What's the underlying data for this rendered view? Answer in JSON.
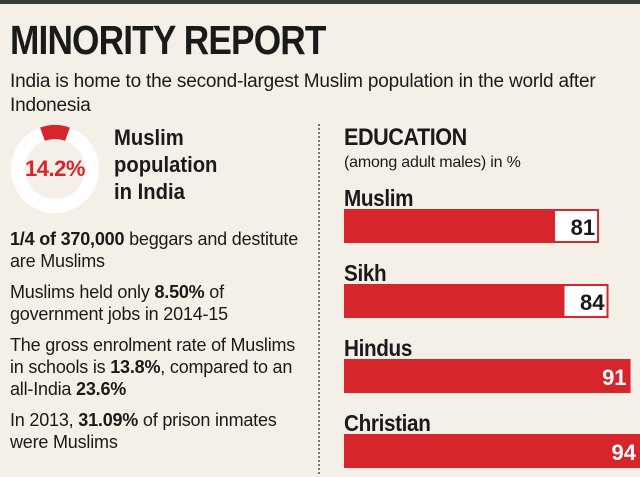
{
  "header": {
    "title": "MINORITY REPORT",
    "subtitle": "India is home to the second-largest Muslim population in the world after Indonesia"
  },
  "population": {
    "value_text": "14.2%",
    "value": 14.2,
    "label_lines": [
      "Muslim",
      "population",
      "in India"
    ]
  },
  "facts": [
    {
      "parts": [
        {
          "t": "1/4 of 370,000",
          "b": true
        },
        {
          "t": " beggars and destitute are Muslims",
          "b": false
        }
      ]
    },
    {
      "parts": [
        {
          "t": "Muslims held only ",
          "b": false
        },
        {
          "t": "8.50%",
          "b": true
        },
        {
          "t": " of government jobs in 2014-15",
          "b": false
        }
      ]
    },
    {
      "parts": [
        {
          "t": "The gross enrolment rate of Muslims in schools is ",
          "b": false
        },
        {
          "t": "13.8%",
          "b": true
        },
        {
          "t": ", compared to an all-India ",
          "b": false
        },
        {
          "t": "23.6%",
          "b": true
        }
      ]
    },
    {
      "parts": [
        {
          "t": "In 2013, ",
          "b": false
        },
        {
          "t": "31.09%",
          "b": true
        },
        {
          "t": " of prison inmates were Muslims",
          "b": false
        }
      ]
    }
  ],
  "chart_data": {
    "type": "bar",
    "title": "EDUCATION",
    "subtitle": "(among adult males) in %",
    "categories": [
      "Muslim",
      "Sikh",
      "Hindus",
      "Christian"
    ],
    "values": [
      81,
      84,
      91,
      94
    ],
    "value_labels": [
      "81",
      "84",
      "91",
      "94"
    ],
    "orientation": "horizontal"
  },
  "colors": {
    "accent": "#d7262b",
    "ring": "#ffffff",
    "background": "#f4f0e8"
  }
}
